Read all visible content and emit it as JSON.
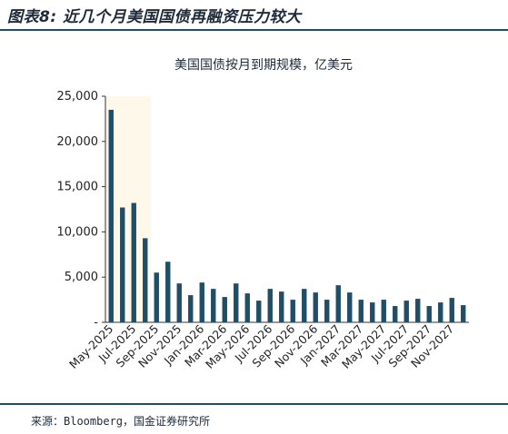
{
  "figure_title": "图表8: 近几个月美国国债再融资压力较大",
  "source_text": "来源：Bloomberg，国金证券研究所",
  "colors": {
    "bar": "#1f4e66",
    "highlight": "#fdf8ea",
    "rule": "#1f4e66",
    "text": "#1d2a3a"
  },
  "chart_data": {
    "type": "bar",
    "title": "美国国债按月到期规模，亿美元",
    "xlabel": "",
    "ylabel": "",
    "ylim": [
      0,
      25000
    ],
    "yticks": [
      0,
      5000,
      10000,
      15000,
      20000,
      25000
    ],
    "ytick_labels": [
      "-",
      "5,000",
      "10,000",
      "15,000",
      "20,000",
      "25,000"
    ],
    "grid": false,
    "highlight_range": [
      "May-2025",
      "Aug-2025"
    ],
    "categories": [
      "May-2025",
      "Jun-2025",
      "Jul-2025",
      "Aug-2025",
      "Sep-2025",
      "Oct-2025",
      "Nov-2025",
      "Dec-2025",
      "Jan-2026",
      "Feb-2026",
      "Mar-2026",
      "Apr-2026",
      "May-2026",
      "Jun-2026",
      "Jul-2026",
      "Aug-2026",
      "Sep-2026",
      "Oct-2026",
      "Nov-2026",
      "Dec-2026",
      "Jan-2027",
      "Feb-2027",
      "Mar-2027",
      "Apr-2027",
      "May-2027",
      "Jun-2027",
      "Jul-2027",
      "Aug-2027",
      "Sep-2027",
      "Oct-2027",
      "Nov-2027",
      "Dec-2027"
    ],
    "visible_labels": [
      "May-2025",
      "Jul-2025",
      "Sep-2025",
      "Nov-2025",
      "Jan-2026",
      "Mar-2026",
      "May-2026",
      "Jul-2026",
      "Sep-2026",
      "Nov-2026",
      "Jan-2027",
      "Mar-2027",
      "May-2027",
      "Jul-2027",
      "Sep-2027",
      "Nov-2027"
    ],
    "values": [
      23500,
      12700,
      13200,
      9300,
      5500,
      6700,
      4300,
      3000,
      4400,
      3700,
      2800,
      4300,
      3200,
      2400,
      3700,
      3400,
      2500,
      3700,
      3300,
      2500,
      4100,
      3300,
      2500,
      2200,
      2500,
      1800,
      2400,
      2600,
      1800,
      2200,
      2700,
      1900
    ]
  }
}
